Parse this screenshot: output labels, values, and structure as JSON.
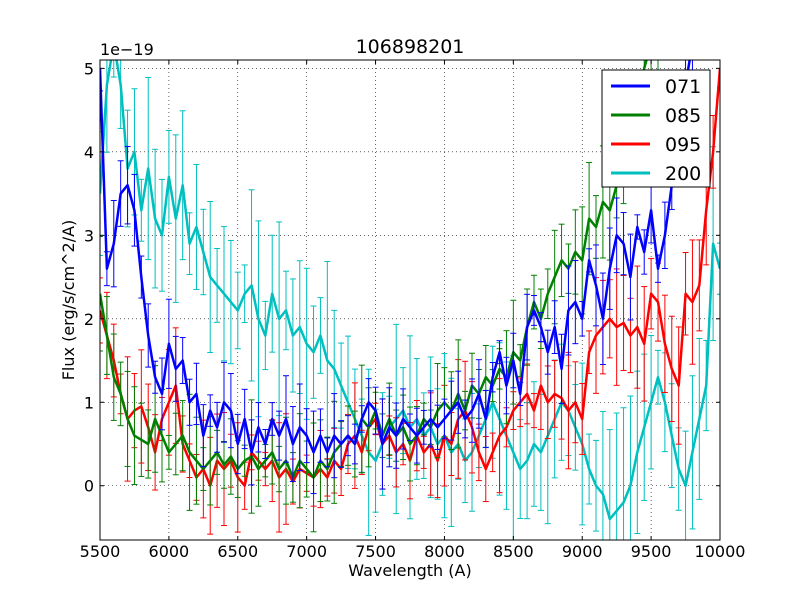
{
  "chart_data": {
    "type": "line",
    "title": "106898201",
    "xlabel": "Wavelength (A)",
    "ylabel": "Flux (erg/s/cm^2/A)",
    "y_offset_label": "1e−19",
    "xlim": [
      5500,
      10000
    ],
    "ylim": [
      -0.65,
      5.1
    ],
    "xticks": [
      5500,
      6000,
      6500,
      7000,
      7500,
      8000,
      8500,
      9000,
      9500,
      10000
    ],
    "xtick_labels": [
      "5500",
      "6000",
      "6500",
      "7000",
      "7500",
      "8000",
      "8500",
      "9000",
      "9500",
      "10000"
    ],
    "yticks": [
      0,
      1,
      2,
      3,
      4,
      5
    ],
    "ytick_labels": [
      "0",
      "1",
      "2",
      "3",
      "4",
      "5"
    ],
    "grid": true,
    "legend_position": "top-right",
    "series": [
      {
        "name": "071",
        "color": "#0000ff",
        "x": [
          5500,
          5550,
          5600,
          5650,
          5700,
          5750,
          5800,
          5850,
          5900,
          5950,
          6000,
          6050,
          6100,
          6150,
          6200,
          6250,
          6300,
          6350,
          6400,
          6450,
          6500,
          6550,
          6600,
          6650,
          6700,
          6750,
          6800,
          6850,
          6900,
          6950,
          7000,
          7050,
          7100,
          7150,
          7200,
          7250,
          7300,
          7350,
          7400,
          7450,
          7500,
          7550,
          7600,
          7650,
          7700,
          7750,
          7800,
          7850,
          7900,
          7950,
          8000,
          8050,
          8100,
          8150,
          8200,
          8250,
          8300,
          8350,
          8400,
          8450,
          8500,
          8550,
          8600,
          8650,
          8700,
          8750,
          8800,
          8850,
          8900,
          8950,
          9000,
          9050,
          9100,
          9150,
          9200,
          9250,
          9300,
          9350,
          9400,
          9450,
          9500,
          9550,
          9600,
          9650,
          9700,
          9750,
          9800
        ],
        "y": [
          5.0,
          2.6,
          2.9,
          3.5,
          3.6,
          3.3,
          2.5,
          1.8,
          1.3,
          1.1,
          1.7,
          1.4,
          1.5,
          1.0,
          1.1,
          0.6,
          0.9,
          0.7,
          1.0,
          0.9,
          0.5,
          0.8,
          0.4,
          0.7,
          0.5,
          0.8,
          0.6,
          0.8,
          0.5,
          0.7,
          0.6,
          0.4,
          0.6,
          0.4,
          0.6,
          0.5,
          0.6,
          0.5,
          0.8,
          1.0,
          0.9,
          0.5,
          0.7,
          0.6,
          0.8,
          0.7,
          0.6,
          0.7,
          0.8,
          0.7,
          0.8,
          0.9,
          1.0,
          0.8,
          0.9,
          1.1,
          0.8,
          1.3,
          1.6,
          1.2,
          1.5,
          1.1,
          1.9,
          2.1,
          1.9,
          1.6,
          1.9,
          1.4,
          2.1,
          2.2,
          2.0,
          2.7,
          2.4,
          2.0,
          2.6,
          3.0,
          2.9,
          2.5,
          3.1,
          2.8,
          3.3,
          2.6,
          3.0,
          3.6,
          4.2,
          4.8,
          5.3
        ]
      },
      {
        "name": "085",
        "color": "#008000",
        "x": [
          5500,
          5550,
          5600,
          5650,
          5700,
          5750,
          5800,
          5850,
          5900,
          5950,
          6000,
          6050,
          6100,
          6150,
          6200,
          6250,
          6300,
          6350,
          6400,
          6450,
          6500,
          6550,
          6600,
          6650,
          6700,
          6750,
          6800,
          6850,
          6900,
          6950,
          7000,
          7050,
          7100,
          7150,
          7200,
          7250,
          7300,
          7350,
          7400,
          7450,
          7500,
          7550,
          7600,
          7650,
          7700,
          7750,
          7800,
          7850,
          7900,
          7950,
          8000,
          8050,
          8100,
          8150,
          8200,
          8250,
          8300,
          8350,
          8400,
          8450,
          8500,
          8550,
          8600,
          8650,
          8700,
          8750,
          8800,
          8850,
          8900,
          8950,
          9000,
          9050,
          9100,
          9150,
          9200,
          9250,
          9300,
          9350,
          9400,
          9450,
          9500,
          9550,
          9600,
          9650
        ],
        "y": [
          2.3,
          1.8,
          1.3,
          1.1,
          0.8,
          0.6,
          0.55,
          0.5,
          0.8,
          0.6,
          0.4,
          0.5,
          0.6,
          0.4,
          0.3,
          0.2,
          0.3,
          0.4,
          0.25,
          0.35,
          0.2,
          0.3,
          0.35,
          0.2,
          0.3,
          0.4,
          0.2,
          0.3,
          0.1,
          0.3,
          0.2,
          0.1,
          0.3,
          0.2,
          0.4,
          0.5,
          0.6,
          0.5,
          0.8,
          0.7,
          0.9,
          0.6,
          0.8,
          0.6,
          0.7,
          0.5,
          0.6,
          0.8,
          0.7,
          0.9,
          1.0,
          0.9,
          1.1,
          0.9,
          1.2,
          1.1,
          1.3,
          1.2,
          1.4,
          1.3,
          1.6,
          1.5,
          1.9,
          2.2,
          2.0,
          2.3,
          2.5,
          2.7,
          2.6,
          2.8,
          2.7,
          3.2,
          3.1,
          3.4,
          3.3,
          3.6,
          3.6,
          3.9,
          4.5,
          5.0,
          5.3,
          5.5,
          5.6,
          5.8
        ]
      },
      {
        "name": "095",
        "color": "#ff0000",
        "x": [
          5500,
          5550,
          5600,
          5650,
          5700,
          5750,
          5800,
          5850,
          5900,
          5950,
          6000,
          6050,
          6100,
          6150,
          6200,
          6250,
          6300,
          6350,
          6400,
          6450,
          6500,
          6550,
          6600,
          6650,
          6700,
          6750,
          6800,
          6850,
          6900,
          6950,
          7000,
          7050,
          7100,
          7150,
          7200,
          7250,
          7300,
          7350,
          7400,
          7450,
          7500,
          7550,
          7600,
          7650,
          7700,
          7750,
          7800,
          7850,
          7900,
          7950,
          8000,
          8050,
          8100,
          8150,
          8200,
          8250,
          8300,
          8350,
          8400,
          8450,
          8500,
          8550,
          8600,
          8650,
          8700,
          8750,
          8800,
          8850,
          8900,
          8950,
          9000,
          9050,
          9100,
          9150,
          9200,
          9250,
          9300,
          9350,
          9400,
          9450,
          9500,
          9550,
          9600,
          9650,
          9700,
          9750,
          9800,
          9850,
          9900,
          9950,
          10000
        ],
        "y": [
          2.1,
          1.8,
          1.5,
          1.1,
          0.8,
          0.9,
          0.95,
          0.7,
          0.4,
          0.8,
          1.0,
          1.2,
          0.5,
          0.3,
          0.1,
          0.2,
          0.0,
          0.3,
          0.2,
          0.3,
          0.1,
          0.0,
          0.4,
          0.3,
          0.2,
          0.3,
          0.1,
          0.2,
          0.05,
          0.2,
          0.15,
          0.1,
          0.2,
          0.1,
          0.3,
          0.2,
          0.5,
          0.6,
          0.4,
          0.7,
          0.8,
          0.5,
          0.6,
          0.4,
          0.5,
          0.3,
          0.6,
          0.4,
          0.5,
          0.3,
          0.6,
          0.5,
          0.8,
          0.9,
          0.7,
          0.4,
          0.2,
          0.4,
          0.6,
          0.7,
          0.9,
          1.0,
          1.1,
          0.9,
          1.2,
          1.0,
          1.1,
          1.05,
          0.9,
          1.0,
          0.8,
          1.6,
          1.8,
          1.9,
          2.0,
          1.9,
          1.95,
          1.8,
          1.9,
          1.7,
          2.3,
          2.2,
          1.7,
          1.4,
          1.2,
          2.3,
          2.2,
          2.4,
          3.3,
          4.0,
          5.0
        ]
      },
      {
        "name": "200",
        "color": "#00bfbf",
        "x": [
          5500,
          5550,
          5600,
          5650,
          5700,
          5750,
          5800,
          5850,
          5900,
          5950,
          6000,
          6050,
          6100,
          6150,
          6200,
          6250,
          6300,
          6350,
          6400,
          6450,
          6500,
          6550,
          6600,
          6650,
          6700,
          6750,
          6800,
          6850,
          6900,
          6950,
          7000,
          7050,
          7100,
          7150,
          7200,
          7250,
          7300,
          7350,
          7400,
          7450,
          7500,
          7550,
          7600,
          7650,
          7700,
          7750,
          7800,
          7850,
          7900,
          7950,
          8000,
          8050,
          8100,
          8150,
          8200,
          8250,
          8300,
          8350,
          8400,
          8450,
          8500,
          8550,
          8600,
          8650,
          8700,
          8750,
          8800,
          8850,
          8900,
          8950,
          9000,
          9050,
          9100,
          9150,
          9200,
          9250,
          9300,
          9350,
          9400,
          9450,
          9500,
          9550,
          9600,
          9650,
          9700,
          9750,
          9800,
          9850,
          9900,
          9950,
          10000
        ],
        "y": [
          3.5,
          4.8,
          5.3,
          4.8,
          3.8,
          4.0,
          3.3,
          3.8,
          3.2,
          3.0,
          3.7,
          3.2,
          3.6,
          2.9,
          3.1,
          2.8,
          2.5,
          2.4,
          2.3,
          2.2,
          2.1,
          2.3,
          2.4,
          2.0,
          1.8,
          2.3,
          2.0,
          2.1,
          1.8,
          1.9,
          1.7,
          1.6,
          1.8,
          1.5,
          1.4,
          1.2,
          1.0,
          0.8,
          0.6,
          0.4,
          0.3,
          0.5,
          0.7,
          0.8,
          0.9,
          0.7,
          0.8,
          0.6,
          0.7,
          0.5,
          0.6,
          0.4,
          0.5,
          0.3,
          0.4,
          0.6,
          0.8,
          1.0,
          0.8,
          0.6,
          0.4,
          0.2,
          0.3,
          0.5,
          0.4,
          0.6,
          0.8,
          1.0,
          0.9,
          0.7,
          0.5,
          0.2,
          0.0,
          -0.1,
          -0.4,
          -0.3,
          -0.2,
          0.0,
          0.4,
          0.7,
          1.0,
          1.3,
          1.0,
          0.6,
          0.2,
          0.0,
          0.4,
          0.8,
          1.2,
          2.9,
          2.6
        ]
      }
    ]
  }
}
